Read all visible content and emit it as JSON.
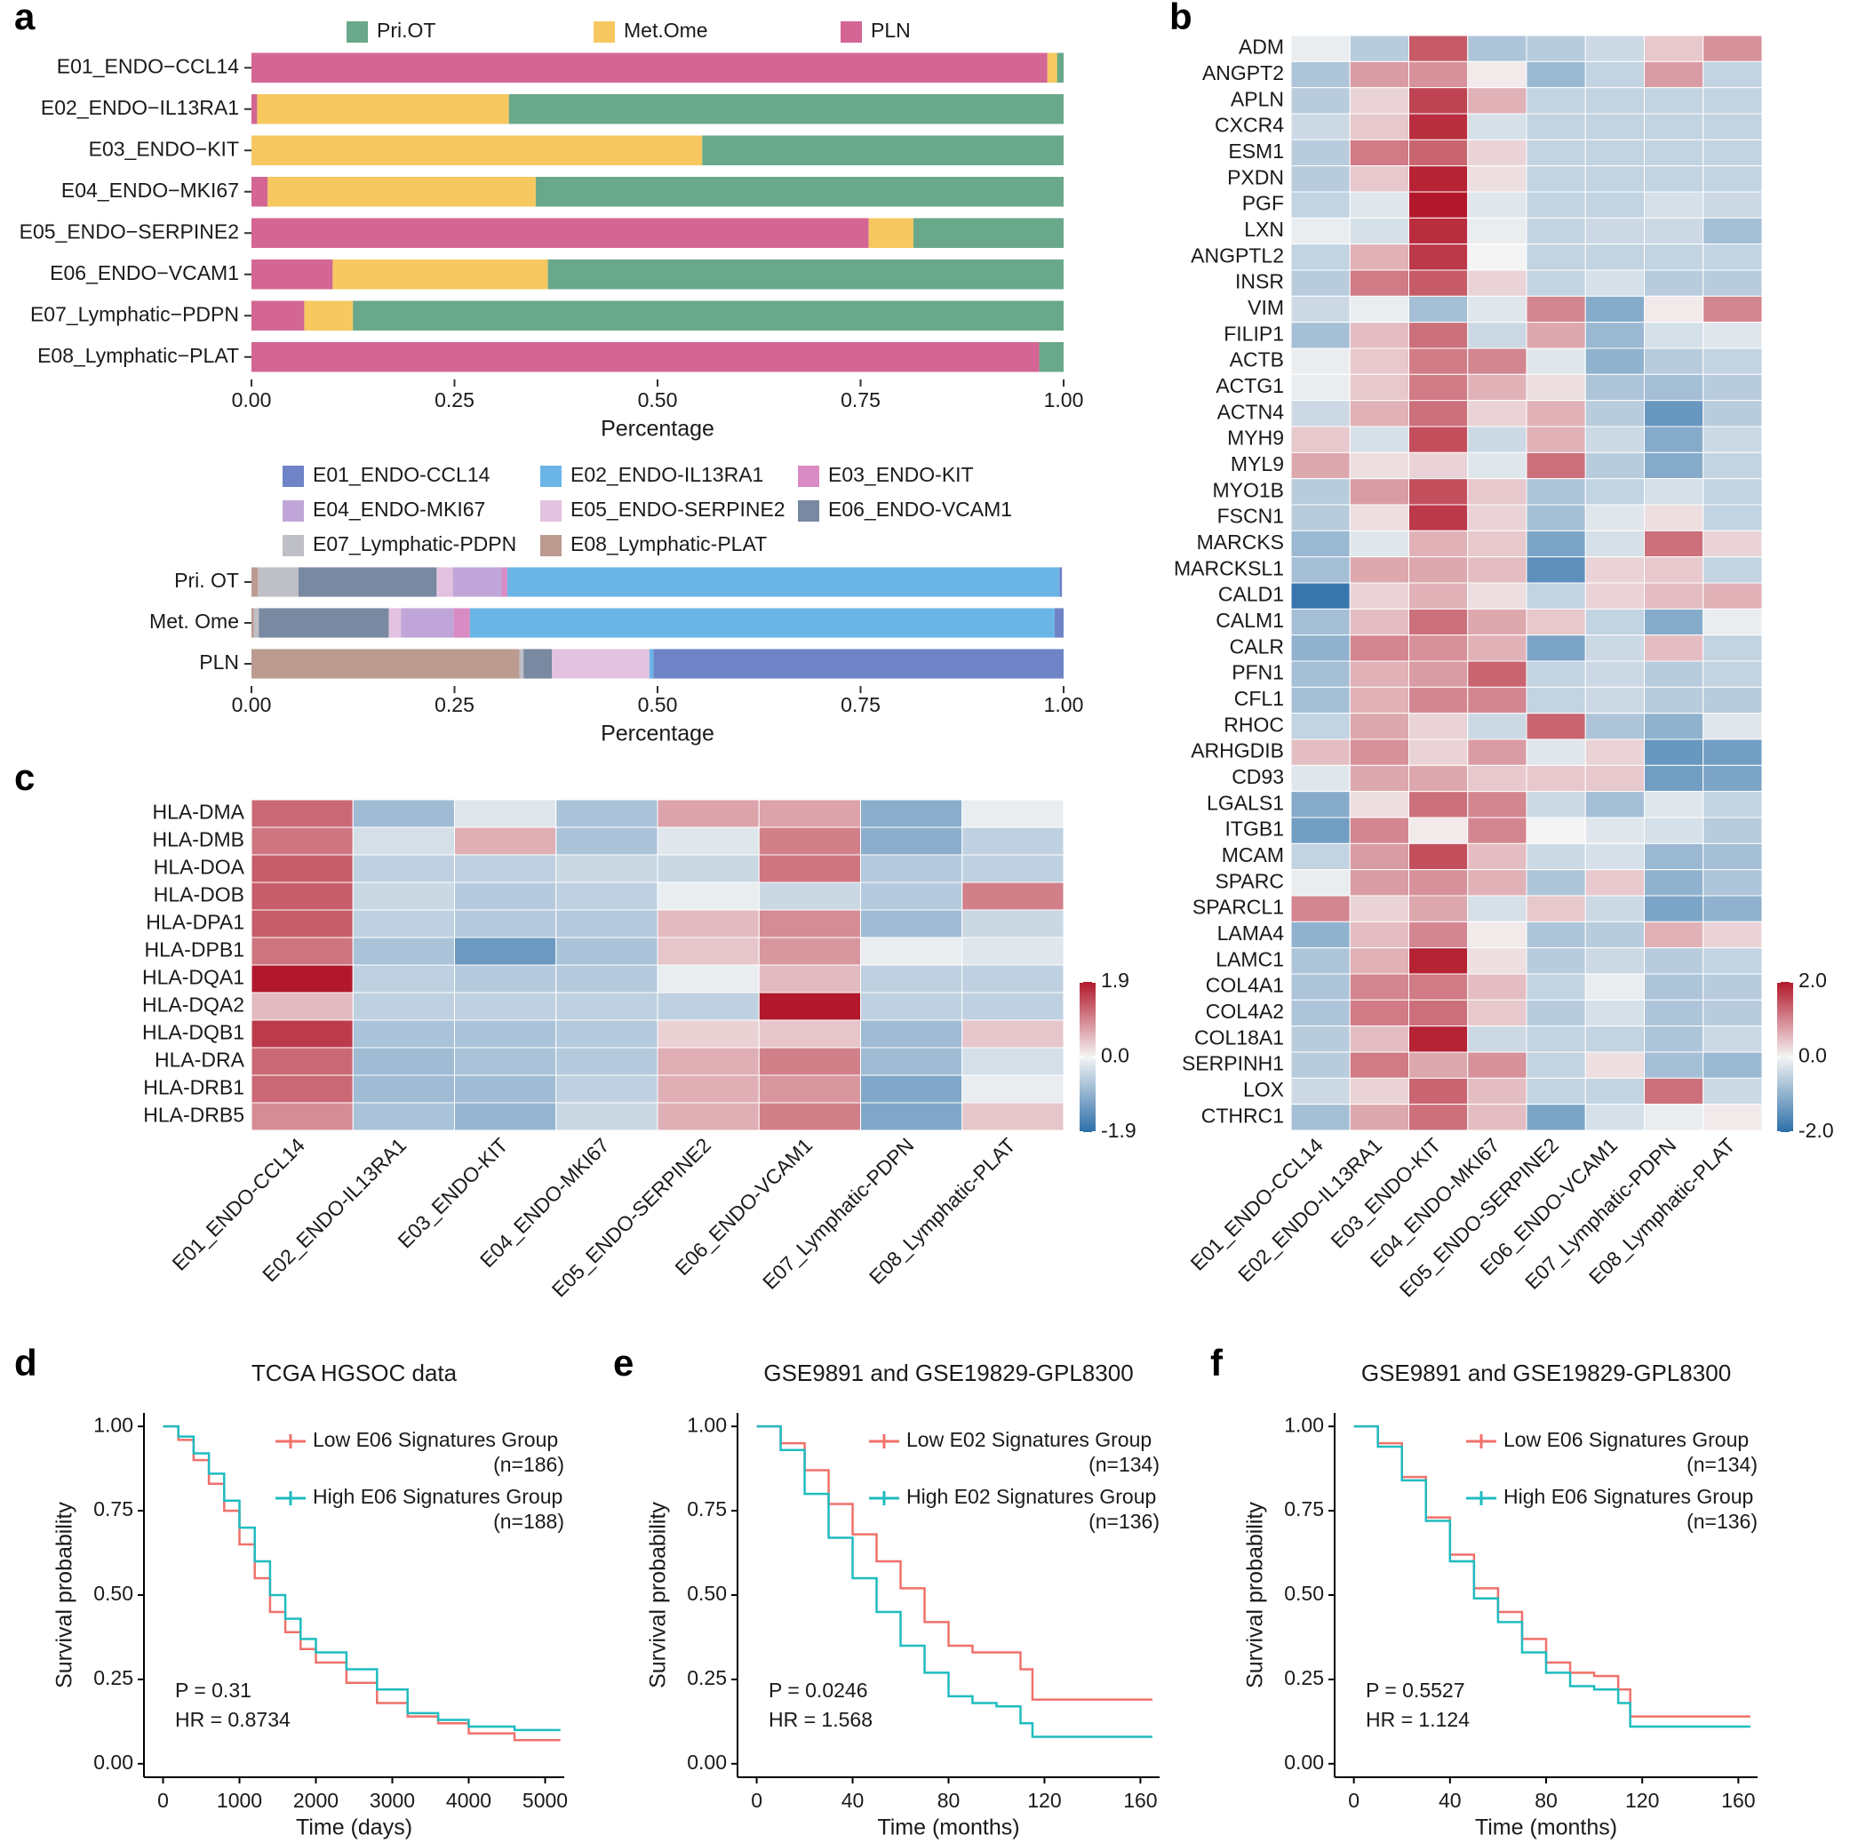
{
  "chart_data": [
    {
      "panel": "a",
      "type": "stacked-barh",
      "categories": [
        "E01_ENDO−CCL14",
        "E02_ENDO−IL13RA1",
        "E03_ENDO−KIT",
        "E04_ENDO−MKI67",
        "E05_ENDO−SERPINE2",
        "E06_ENDO−VCAM1",
        "E07_Lymphatic−PDPN",
        "E08_Lymphatic−PLAT"
      ],
      "series": [
        {
          "name": "Pri.OT",
          "color": "#69a88a",
          "values": [
            0.008,
            0.683,
            0.445,
            0.65,
            0.185,
            0.635,
            0.875,
            0.03
          ]
        },
        {
          "name": "Met.Ome",
          "color": "#f6c85f",
          "values": [
            0.012,
            0.31,
            0.555,
            0.33,
            0.055,
            0.265,
            0.06,
            0
          ]
        },
        {
          "name": "PLN",
          "color": "#d36693",
          "values": [
            0.98,
            0.007,
            0,
            0.02,
            0.76,
            0.1,
            0.065,
            0.97
          ]
        }
      ],
      "xlim": [
        0,
        1
      ],
      "xticks": [
        {
          "value": 0,
          "label": "0.00"
        },
        {
          "value": 0.25,
          "label": "0.25"
        },
        {
          "value": 0.5,
          "label": "0.50"
        },
        {
          "value": 0.75,
          "label": "0.75"
        },
        {
          "value": 1,
          "label": "1.00"
        }
      ],
      "xlabel": "Percentage",
      "legend": "top",
      "legend_columns": 3
    },
    {
      "type": "stacked-barh",
      "categories": [
        "Pri. OT",
        "Met. Ome",
        "PLN"
      ],
      "series": [
        {
          "name": "E01_ENDO-CCL14",
          "color": "#6f84c6",
          "values": [
            0.003,
            0.011,
            0.505
          ]
        },
        {
          "name": "E02_ENDO-IL13RA1",
          "color": "#6bb5e6",
          "values": [
            0.68,
            0.72,
            0.005
          ]
        },
        {
          "name": "E03_ENDO-KIT",
          "color": "#d98bc4",
          "values": [
            0.007,
            0.02,
            0
          ]
        },
        {
          "name": "E04_ENDO-MKI67",
          "color": "#c0a6d8",
          "values": [
            0.06,
            0.065,
            0
          ]
        },
        {
          "name": "E05_ENDO-SERPINE2",
          "color": "#e3c1e0",
          "values": [
            0.02,
            0.015,
            0.12
          ]
        },
        {
          "name": "E06_ENDO-VCAM1",
          "color": "#7889a1",
          "values": [
            0.17,
            0.16,
            0.035
          ]
        },
        {
          "name": "E07_Lymphatic-PDPN",
          "color": "#bfbfc6",
          "values": [
            0.05,
            0.006,
            0.005
          ]
        },
        {
          "name": "E08_Lymphatic-PLAT",
          "color": "#bb9b90",
          "values": [
            0.008,
            0.003,
            0.33
          ]
        }
      ],
      "xlim": [
        0,
        1
      ],
      "xticks": [
        {
          "value": 0,
          "label": "0.00"
        },
        {
          "value": 0.25,
          "label": "0.25"
        },
        {
          "value": 0.5,
          "label": "0.50"
        },
        {
          "value": 0.75,
          "label": "0.75"
        },
        {
          "value": 1,
          "label": "1.00"
        }
      ],
      "xlabel": "Percentage",
      "legend": "top",
      "legend_columns": 3
    },
    {
      "panel": "b",
      "type": "heatmap",
      "rows": [
        "ADM",
        "ANGPT2",
        "APLN",
        "CXCR4",
        "ESM1",
        "PXDN",
        "PGF",
        "LXN",
        "ANGPTL2",
        "INSR",
        "VIM",
        "FILIP1",
        "ACTB",
        "ACTG1",
        "ACTN4",
        "MYH9",
        "MYL9",
        "MYO1B",
        "FSCN1",
        "MARCKS",
        "MARCKSL1",
        "CALD1",
        "CALM1",
        "CALR",
        "PFN1",
        "CFL1",
        "RHOC",
        "ARHGDIB",
        "CD93",
        "LGALS1",
        "ITGB1",
        "MCAM",
        "SPARC",
        "SPARCL1",
        "LAMA4",
        "LAMC1",
        "COL4A1",
        "COL4A2",
        "COL18A1",
        "SERPINH1",
        "LOX",
        "CTHRC1"
      ],
      "columns": [
        "E01_ENDO-CCL14",
        "E02_ENDO-IL13RA1",
        "E03_ENDO-KIT",
        "E04_ENDO-MKI67",
        "E05_ENDO-SERPINE2",
        "E06_ENDO-VCAM1",
        "E07_Lymphatic-PDPN",
        "E08_Lymphatic-PLAT"
      ],
      "values": [
        [
          -0.1,
          -0.6,
          1.4,
          -0.7,
          -0.6,
          -0.4,
          0.4,
          0.9
        ],
        [
          -0.7,
          0.8,
          0.9,
          0.1,
          -0.9,
          -0.5,
          0.8,
          -0.5
        ],
        [
          -0.6,
          0.3,
          1.6,
          0.6,
          -0.5,
          -0.5,
          -0.5,
          -0.5
        ],
        [
          -0.4,
          0.4,
          1.8,
          -0.3,
          -0.5,
          -0.5,
          -0.5,
          -0.5
        ],
        [
          -0.6,
          1.1,
          1.3,
          0.3,
          -0.5,
          -0.5,
          -0.5,
          -0.5
        ],
        [
          -0.6,
          0.4,
          1.9,
          0.2,
          -0.5,
          -0.5,
          -0.5,
          -0.5
        ],
        [
          -0.5,
          -0.2,
          2.0,
          -0.2,
          -0.5,
          -0.5,
          -0.3,
          -0.4
        ],
        [
          -0.1,
          -0.3,
          1.8,
          -0.1,
          -0.5,
          -0.4,
          -0.4,
          -0.8
        ],
        [
          -0.5,
          0.6,
          1.7,
          0.0,
          -0.5,
          -0.5,
          -0.5,
          -0.5
        ],
        [
          -0.6,
          1.1,
          1.4,
          0.3,
          -0.5,
          -0.3,
          -0.6,
          -0.6
        ],
        [
          -0.4,
          -0.1,
          -0.8,
          -0.2,
          1.0,
          -1.1,
          0.1,
          1.0
        ],
        [
          -0.8,
          0.5,
          1.2,
          -0.4,
          0.7,
          -0.9,
          -0.3,
          -0.2
        ],
        [
          -0.1,
          0.4,
          1.1,
          1.0,
          -0.2,
          -1.0,
          -0.6,
          -0.5
        ],
        [
          -0.1,
          0.4,
          1.1,
          0.6,
          0.2,
          -0.7,
          -0.8,
          -0.6
        ],
        [
          -0.4,
          0.6,
          1.2,
          0.3,
          0.6,
          -0.6,
          -1.4,
          -0.6
        ],
        [
          0.4,
          -0.3,
          1.5,
          -0.4,
          0.6,
          -0.4,
          -1.1,
          -0.4
        ],
        [
          0.7,
          0.2,
          0.3,
          -0.2,
          1.2,
          -0.6,
          -1.1,
          -0.5
        ],
        [
          -0.6,
          0.8,
          1.5,
          0.4,
          -0.7,
          -0.5,
          -0.3,
          -0.5
        ],
        [
          -0.6,
          0.2,
          1.7,
          0.3,
          -0.8,
          -0.2,
          0.2,
          -0.5
        ],
        [
          -0.9,
          -0.2,
          0.6,
          0.4,
          -1.2,
          -0.3,
          1.2,
          0.3
        ],
        [
          -0.8,
          0.7,
          0.7,
          0.5,
          -1.5,
          0.3,
          0.4,
          -0.5
        ],
        [
          -1.9,
          0.3,
          0.6,
          0.2,
          -0.5,
          0.3,
          0.5,
          0.6
        ],
        [
          -0.8,
          0.5,
          1.2,
          0.7,
          0.4,
          -0.5,
          -1.1,
          -0.1
        ],
        [
          -1.0,
          1.0,
          0.9,
          0.6,
          -1.2,
          -0.4,
          0.5,
          -0.5
        ],
        [
          -0.8,
          0.6,
          0.8,
          1.3,
          -0.5,
          -0.4,
          -0.6,
          -0.5
        ],
        [
          -0.8,
          0.6,
          1.0,
          1.0,
          -0.5,
          -0.4,
          -0.6,
          -0.6
        ],
        [
          -0.5,
          0.7,
          0.3,
          -0.4,
          1.3,
          -0.7,
          -1.0,
          -0.2
        ],
        [
          0.5,
          0.9,
          0.3,
          0.8,
          -0.2,
          0.3,
          -1.4,
          -1.3
        ],
        [
          -0.2,
          0.7,
          0.7,
          0.4,
          0.4,
          0.4,
          -1.3,
          -1.2
        ],
        [
          -1.1,
          0.2,
          1.2,
          1.0,
          -0.4,
          -0.8,
          -0.2,
          -0.5
        ],
        [
          -1.3,
          1.0,
          0.1,
          1.0,
          0.0,
          -0.2,
          -0.3,
          -0.6
        ],
        [
          -0.5,
          0.8,
          1.5,
          0.5,
          -0.4,
          -0.3,
          -0.9,
          -0.8
        ],
        [
          -0.1,
          0.8,
          0.9,
          0.6,
          -0.7,
          0.4,
          -1.0,
          -0.7
        ],
        [
          1.0,
          0.3,
          0.7,
          -0.3,
          0.4,
          -0.4,
          -1.2,
          -1.0
        ],
        [
          -1.0,
          0.5,
          1.0,
          0.1,
          -0.7,
          -0.6,
          0.6,
          0.3
        ],
        [
          -0.7,
          0.6,
          1.9,
          0.2,
          -0.6,
          -0.4,
          -0.6,
          -0.5
        ],
        [
          -0.7,
          1.0,
          1.1,
          0.5,
          -0.5,
          -0.1,
          -0.7,
          -0.6
        ],
        [
          -0.7,
          1.1,
          1.2,
          0.4,
          -0.6,
          -0.3,
          -0.7,
          -0.6
        ],
        [
          -0.6,
          0.5,
          1.9,
          -0.4,
          -0.5,
          -0.5,
          -0.7,
          -0.4
        ],
        [
          -0.6,
          1.1,
          0.7,
          0.9,
          -0.5,
          0.2,
          -0.8,
          -0.9
        ],
        [
          -0.4,
          0.3,
          1.3,
          0.5,
          -0.5,
          -0.5,
          1.2,
          -0.4
        ],
        [
          -0.8,
          0.7,
          1.2,
          0.5,
          -1.2,
          -0.3,
          -0.1,
          0.1
        ]
      ],
      "zlim": [
        -2,
        2
      ],
      "zticks": [
        {
          "value": 2,
          "label": "2.0"
        },
        {
          "value": 0,
          "label": "0.0"
        },
        {
          "value": -2,
          "label": "-2.0"
        }
      ],
      "colors": [
        "#2c6fa8",
        "#f4f4f4",
        "#b2182b"
      ]
    },
    {
      "panel": "c",
      "type": "heatmap",
      "rows": [
        "HLA-DMA",
        "HLA-DMB",
        "HLA-DOA",
        "HLA-DOB",
        "HLA-DPA1",
        "HLA-DPB1",
        "HLA-DQA1",
        "HLA-DQA2",
        "HLA-DQB1",
        "HLA-DRA",
        "HLA-DRB1",
        "HLA-DRB5"
      ],
      "columns": [
        "E01_ENDO-CCL14",
        "E02_ENDO-IL13RA1",
        "E03_ENDO-KIT",
        "E04_ENDO-MKI67",
        "E05_ENDO-SERPINE2",
        "E06_ENDO-VCAM1",
        "E07_Lymphatic-PDPN",
        "E08_Lymphatic-PLAT"
      ],
      "values": [
        [
          1.2,
          -0.8,
          -0.2,
          -0.7,
          0.7,
          0.7,
          -1.0,
          -0.1
        ],
        [
          1.1,
          -0.3,
          0.6,
          -0.7,
          -0.2,
          1.0,
          -1.0,
          -0.5
        ],
        [
          1.3,
          -0.5,
          -0.5,
          -0.4,
          -0.4,
          1.1,
          -0.6,
          -0.5
        ],
        [
          1.3,
          -0.4,
          -0.6,
          -0.5,
          -0.1,
          -0.4,
          -0.6,
          1.0
        ],
        [
          1.3,
          -0.5,
          -0.6,
          -0.6,
          0.5,
          0.9,
          -0.8,
          -0.4
        ],
        [
          1.1,
          -0.7,
          -1.3,
          -0.7,
          0.4,
          0.8,
          -0.1,
          -0.2
        ],
        [
          1.9,
          -0.5,
          -0.6,
          -0.6,
          -0.1,
          0.5,
          -0.5,
          -0.5
        ],
        [
          0.5,
          -0.5,
          -0.5,
          -0.5,
          -0.5,
          1.9,
          -0.5,
          -0.5
        ],
        [
          1.6,
          -0.7,
          -0.7,
          -0.6,
          0.3,
          0.4,
          -0.8,
          0.4
        ],
        [
          1.2,
          -0.8,
          -0.7,
          -0.6,
          0.6,
          1.0,
          -0.8,
          -0.3
        ],
        [
          1.2,
          -0.8,
          -0.8,
          -0.5,
          0.6,
          0.8,
          -1.1,
          -0.1
        ],
        [
          0.9,
          -0.7,
          -0.9,
          -0.4,
          0.6,
          1.0,
          -1.1,
          0.4
        ]
      ],
      "zlim": [
        -1.9,
        1.9
      ],
      "zticks": [
        1.9,
        {
          "value": 0,
          "label": "0.0"
        },
        -1.9
      ],
      "colors": [
        "#2c6fa8",
        "#f4f4f4",
        "#b2182b"
      ]
    },
    {
      "panel": "d",
      "type": "survival",
      "title": "TCGA HGSOC data",
      "x": [
        0,
        200,
        400,
        600,
        800,
        1000,
        1200,
        1400,
        1600,
        1800,
        2000,
        2400,
        2800,
        3200,
        3600,
        4000,
        4600,
        5200
      ],
      "series": [
        {
          "name": "Low E06 Signatures Group",
          "n_label": "(n=186)",
          "color": "#f0716b",
          "values": [
            1,
            0.96,
            0.9,
            0.83,
            0.75,
            0.65,
            0.55,
            0.45,
            0.39,
            0.34,
            0.3,
            0.24,
            0.18,
            0.14,
            0.12,
            0.09,
            0.07,
            0.07
          ]
        },
        {
          "name": "High E06 Signatures Group",
          "n_label": "(n=188)",
          "color": "#1fbcc0",
          "values": [
            1,
            0.97,
            0.92,
            0.86,
            0.78,
            0.7,
            0.6,
            0.5,
            0.43,
            0.37,
            0.33,
            0.28,
            0.22,
            0.15,
            0.13,
            0.11,
            0.1,
            0.1
          ]
        }
      ],
      "xlim": [
        -250,
        5250
      ],
      "xticks": [
        0,
        1000,
        2000,
        3000,
        4000,
        5000
      ],
      "ylim": [
        -0.04,
        1.04
      ],
      "yticks": [
        {
          "value": 0,
          "label": "0.00"
        },
        {
          "value": 0.25,
          "label": "0.25"
        },
        {
          "value": 0.5,
          "label": "0.50"
        },
        {
          "value": 0.75,
          "label": "0.75"
        },
        {
          "value": 1,
          "label": "1.00"
        }
      ],
      "xlabel": "Time (days)",
      "ylabel": "Survival probability",
      "annotations": [
        "P = 0.31",
        "HR = 0.8734"
      ]
    },
    {
      "panel": "e",
      "type": "survival",
      "title": "GSE9891 and GSE19829-GPL8300",
      "x": [
        0,
        10,
        20,
        30,
        40,
        50,
        60,
        70,
        80,
        90,
        100,
        110,
        115,
        165
      ],
      "series": [
        {
          "name": "Low E02 Signatures Group",
          "n_label": "(n=134)",
          "color": "#f0716b",
          "values": [
            1,
            0.95,
            0.87,
            0.77,
            0.68,
            0.6,
            0.52,
            0.42,
            0.35,
            0.33,
            0.33,
            0.28,
            0.19,
            0.19
          ]
        },
        {
          "name": "High E02 Signatures Group",
          "n_label": "(n=136)",
          "color": "#1fbcc0",
          "values": [
            1,
            0.93,
            0.8,
            0.67,
            0.55,
            0.45,
            0.35,
            0.27,
            0.2,
            0.18,
            0.17,
            0.12,
            0.08,
            0.08
          ]
        }
      ],
      "xlim": [
        -8,
        168
      ],
      "xticks": [
        0,
        40,
        80,
        120,
        160
      ],
      "ylim": [
        -0.04,
        1.04
      ],
      "yticks": [
        {
          "value": 0,
          "label": "0.00"
        },
        {
          "value": 0.25,
          "label": "0.25"
        },
        {
          "value": 0.5,
          "label": "0.50"
        },
        {
          "value": 0.75,
          "label": "0.75"
        },
        {
          "value": 1,
          "label": "1.00"
        }
      ],
      "xlabel": "Time (months)",
      "ylabel": "Survival probability",
      "annotations": [
        "P = 0.0246",
        "HR = 1.568"
      ]
    },
    {
      "panel": "f",
      "type": "survival",
      "title": "GSE9891 and GSE19829-GPL8300",
      "x": [
        0,
        10,
        20,
        30,
        40,
        50,
        60,
        70,
        80,
        90,
        100,
        110,
        115,
        165
      ],
      "series": [
        {
          "name": "Low E06 Signatures Group",
          "n_label": "(n=134)",
          "color": "#f0716b",
          "values": [
            1,
            0.95,
            0.85,
            0.73,
            0.62,
            0.52,
            0.45,
            0.37,
            0.3,
            0.27,
            0.26,
            0.22,
            0.14,
            0.14
          ]
        },
        {
          "name": "High E06 Signatures Group",
          "n_label": "(n=136)",
          "color": "#1fbcc0",
          "values": [
            1,
            0.94,
            0.84,
            0.72,
            0.6,
            0.49,
            0.42,
            0.33,
            0.27,
            0.23,
            0.22,
            0.18,
            0.11,
            0.11
          ]
        }
      ],
      "xlim": [
        -8,
        168
      ],
      "xticks": [
        0,
        40,
        80,
        120,
        160
      ],
      "ylim": [
        -0.04,
        1.04
      ],
      "yticks": [
        {
          "value": 0,
          "label": "0.00"
        },
        {
          "value": 0.25,
          "label": "0.25"
        },
        {
          "value": 0.5,
          "label": "0.50"
        },
        {
          "value": 0.75,
          "label": "0.75"
        },
        {
          "value": 1,
          "label": "1.00"
        }
      ],
      "xlabel": "Time (months)",
      "ylabel": "Survival probability",
      "annotations": [
        "P = 0.5527",
        "HR = 1.124"
      ]
    }
  ]
}
